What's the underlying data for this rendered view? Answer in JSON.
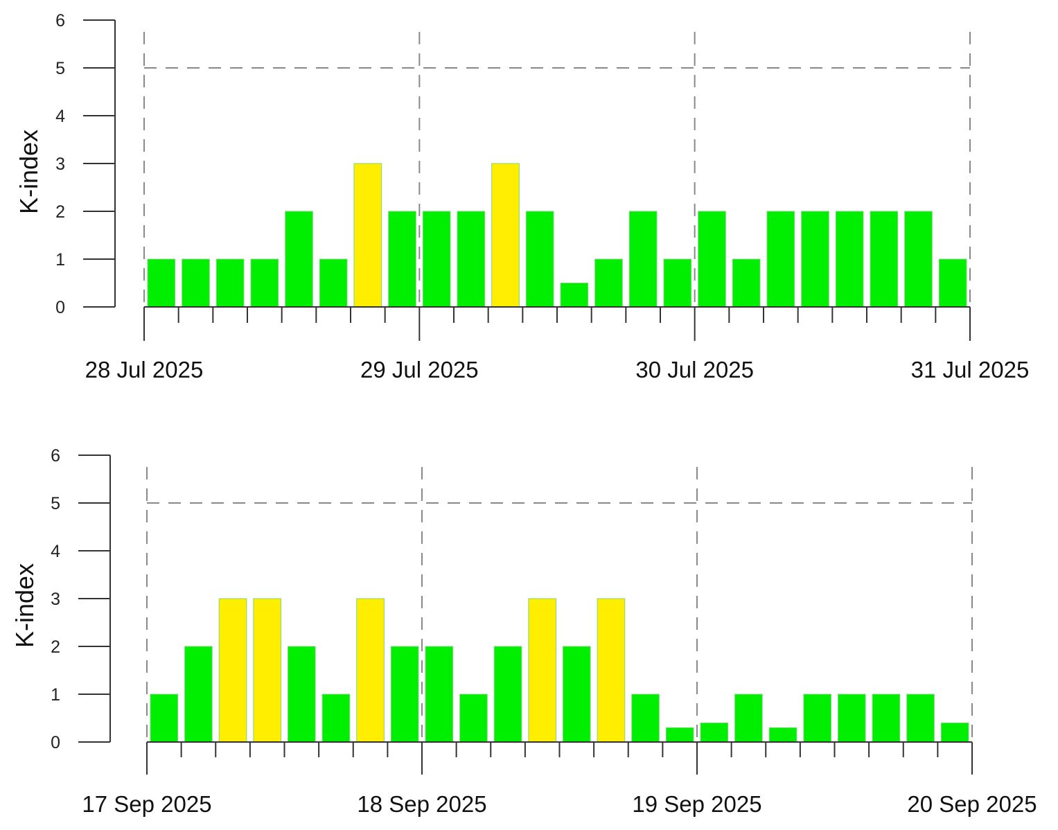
{
  "chart_data": [
    {
      "type": "bar",
      "ylabel": "K-index",
      "ylim": [
        0,
        6
      ],
      "yticks": [
        "0",
        "1",
        "2",
        "3",
        "4",
        "5",
        "6"
      ],
      "threshold": 5,
      "date_labels": [
        "28 Jul 2025",
        "29 Jul 2025",
        "30 Jul 2025",
        "31 Jul 2025"
      ],
      "values": [
        1,
        1,
        1,
        1,
        2,
        1,
        3,
        2,
        2,
        2,
        3,
        2,
        0.5,
        1,
        2,
        1,
        2,
        1,
        2,
        2,
        2,
        2,
        2,
        1
      ],
      "colors": {
        "low": "#00ee00",
        "elevated": "#ffee00",
        "outline": "#7fd67f"
      },
      "elevated_from": 3
    },
    {
      "type": "bar",
      "ylabel": "K-index",
      "ylim": [
        0,
        6
      ],
      "yticks": [
        "0",
        "1",
        "2",
        "3",
        "4",
        "5",
        "6"
      ],
      "threshold": 5,
      "date_labels": [
        "17 Sep 2025",
        "18 Sep 2025",
        "19 Sep 2025",
        "20 Sep 2025"
      ],
      "values": [
        1,
        2,
        3,
        3,
        2,
        1,
        3,
        2,
        2,
        1,
        2,
        3,
        2,
        3,
        1,
        0.3,
        0.4,
        1,
        0.3,
        1,
        1,
        1,
        1,
        0.4
      ],
      "colors": {
        "low": "#00ee00",
        "elevated": "#ffee00",
        "outline": "#7fd67f"
      },
      "elevated_from": 3
    }
  ]
}
